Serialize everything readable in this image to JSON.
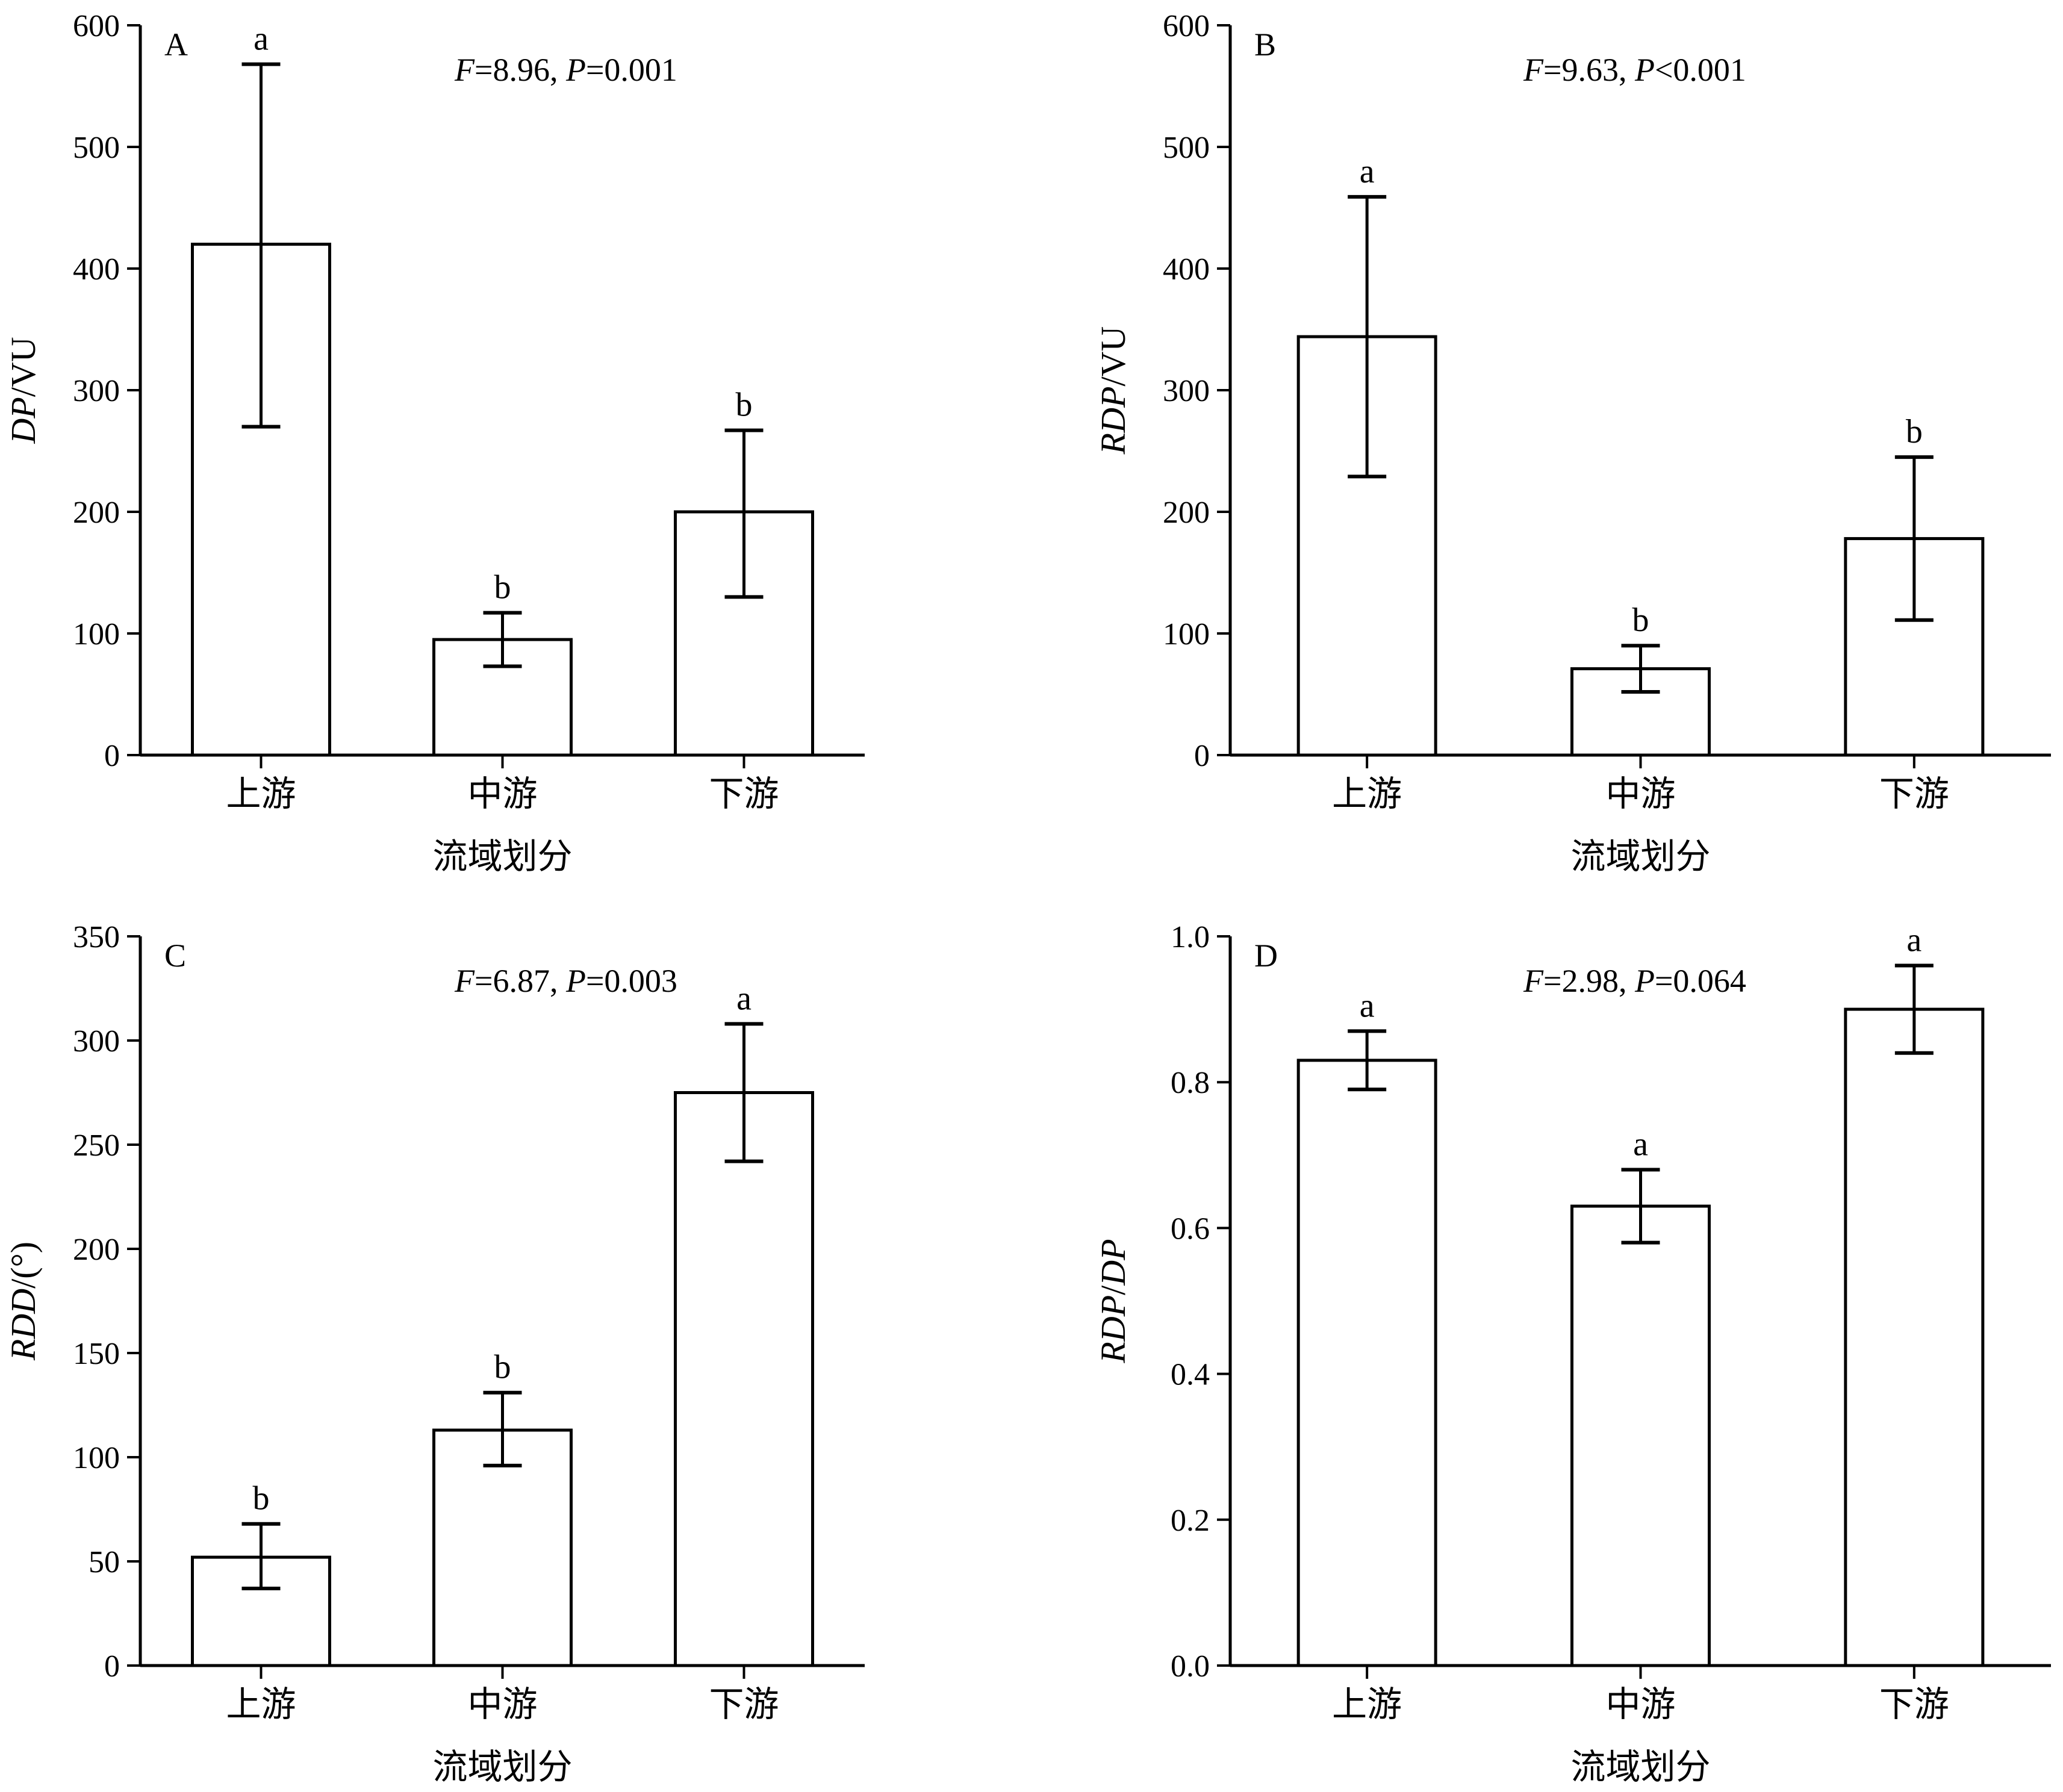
{
  "chart_data": [
    {
      "type": "bar",
      "panel": "A",
      "categories": [
        "上游",
        "中游",
        "下游"
      ],
      "values": [
        420,
        95,
        200
      ],
      "error_low": [
        270,
        73,
        130
      ],
      "error_high": [
        568,
        117,
        267
      ],
      "significance": [
        "a",
        "b",
        "b"
      ],
      "ylim": [
        0,
        600
      ],
      "yticks": [
        0,
        100,
        200,
        300,
        400,
        500,
        600
      ],
      "ytick_labels": [
        "0",
        "100",
        "200",
        "300",
        "400",
        "500",
        "600"
      ],
      "xlabel": "流域划分",
      "ylabel_parts": [
        {
          "text": "DP",
          "italic": true
        },
        {
          "text": "/VU",
          "italic": false
        }
      ],
      "annotation": [
        {
          "text": "F",
          "italic": true
        },
        {
          "text": "=8.96, ",
          "italic": false
        },
        {
          "text": "P",
          "italic": true
        },
        {
          "text": "=0.001",
          "italic": false
        }
      ]
    },
    {
      "type": "bar",
      "panel": "B",
      "categories": [
        "上游",
        "中游",
        "下游"
      ],
      "values": [
        344,
        71,
        178
      ],
      "error_low": [
        229,
        52,
        111
      ],
      "error_high": [
        459,
        90,
        245
      ],
      "significance": [
        "a",
        "b",
        "b"
      ],
      "ylim": [
        0,
        600
      ],
      "yticks": [
        0,
        100,
        200,
        300,
        400,
        500,
        600
      ],
      "ytick_labels": [
        "0",
        "100",
        "200",
        "300",
        "400",
        "500",
        "600"
      ],
      "xlabel": "流域划分",
      "ylabel_parts": [
        {
          "text": "RDP",
          "italic": true
        },
        {
          "text": "/VU",
          "italic": false
        }
      ],
      "annotation": [
        {
          "text": "F",
          "italic": true
        },
        {
          "text": "=9.63, ",
          "italic": false
        },
        {
          "text": "P",
          "italic": true
        },
        {
          "text": "<0.001",
          "italic": false
        }
      ]
    },
    {
      "type": "bar",
      "panel": "C",
      "categories": [
        "上游",
        "中游",
        "下游"
      ],
      "values": [
        52,
        113,
        275
      ],
      "error_low": [
        37,
        96,
        242
      ],
      "error_high": [
        68,
        131,
        308
      ],
      "significance": [
        "b",
        "b",
        "a"
      ],
      "ylim": [
        0,
        350
      ],
      "yticks": [
        0,
        50,
        100,
        150,
        200,
        250,
        300,
        350
      ],
      "ytick_labels": [
        "0",
        "50",
        "100",
        "150",
        "200",
        "250",
        "300",
        "350"
      ],
      "xlabel": "流域划分",
      "ylabel_parts": [
        {
          "text": "RDD",
          "italic": true
        },
        {
          "text": "/(°)",
          "italic": false
        }
      ],
      "annotation": [
        {
          "text": "F",
          "italic": true
        },
        {
          "text": "=6.87, ",
          "italic": false
        },
        {
          "text": "P",
          "italic": true
        },
        {
          "text": "=0.003",
          "italic": false
        }
      ]
    },
    {
      "type": "bar",
      "panel": "D",
      "categories": [
        "上游",
        "中游",
        "下游"
      ],
      "values": [
        0.83,
        0.63,
        0.9
      ],
      "error_low": [
        0.79,
        0.58,
        0.84
      ],
      "error_high": [
        0.87,
        0.68,
        0.96
      ],
      "significance": [
        "a",
        "a",
        "a"
      ],
      "ylim": [
        0,
        1.0
      ],
      "yticks": [
        0,
        0.2,
        0.4,
        0.6,
        0.8,
        1.0
      ],
      "ytick_labels": [
        "0.0",
        "0.2",
        "0.4",
        "0.6",
        "0.8",
        "1.0"
      ],
      "xlabel": "流域划分",
      "ylabel_parts": [
        {
          "text": "RDP",
          "italic": true
        },
        {
          "text": "/",
          "italic": false
        },
        {
          "text": "DP",
          "italic": true
        }
      ],
      "annotation": [
        {
          "text": "F",
          "italic": true
        },
        {
          "text": "=2.98, ",
          "italic": false
        },
        {
          "text": "P",
          "italic": true
        },
        {
          "text": "=0.064",
          "italic": false
        }
      ]
    }
  ]
}
